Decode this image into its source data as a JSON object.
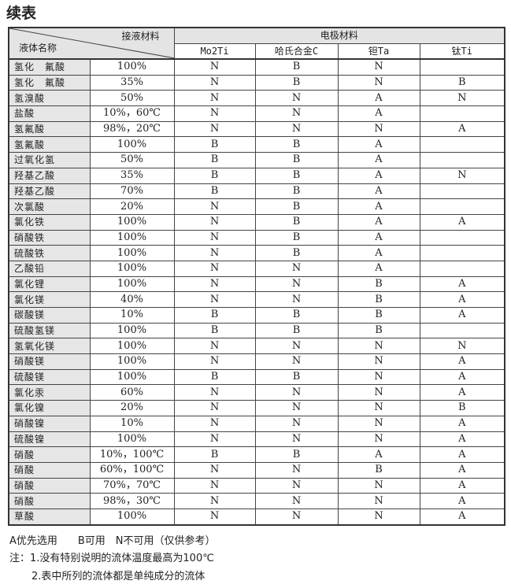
{
  "title": "续表",
  "header": {
    "material": "接液材料",
    "fluid": "液体名称",
    "electrode": "电极材料",
    "columns": [
      "Mo2Ti",
      "哈氏合金C",
      "钽Ta",
      "钛Ti"
    ]
  },
  "rows": [
    [
      "氢化　氟酸",
      "100%",
      "N",
      "B",
      "N",
      ""
    ],
    [
      "氢化　氟酸",
      "35%",
      "N",
      "B",
      "N",
      "B"
    ],
    [
      "氢溴酸",
      "50%",
      "N",
      "N",
      "A",
      "N"
    ],
    [
      "盐酸",
      "10%，60℃",
      "N",
      "N",
      "A",
      ""
    ],
    [
      "氢氟酸",
      "98%，20℃",
      "N",
      "N",
      "N",
      "A"
    ],
    [
      "氢氟酸",
      "100%",
      "B",
      "B",
      "A",
      ""
    ],
    [
      "过氧化氢",
      "50%",
      "B",
      "B",
      "A",
      ""
    ],
    [
      "羟基乙酸",
      "35%",
      "B",
      "B",
      "A",
      "N"
    ],
    [
      "羟基乙酸",
      "70%",
      "B",
      "B",
      "A",
      ""
    ],
    [
      "次氯酸",
      "20%",
      "N",
      "B",
      "A",
      ""
    ],
    [
      "氯化铁",
      "100%",
      "N",
      "B",
      "A",
      "A"
    ],
    [
      "硝酸铁",
      "100%",
      "N",
      "B",
      "A",
      ""
    ],
    [
      "硫酸铁",
      "100%",
      "N",
      "B",
      "A",
      ""
    ],
    [
      "乙酸铅",
      "100%",
      "N",
      "N",
      "A",
      ""
    ],
    [
      "氯化锂",
      "100%",
      "N",
      "N",
      "B",
      "A"
    ],
    [
      "氯化镁",
      "40%",
      "N",
      "N",
      "B",
      "A"
    ],
    [
      "碳酸镁",
      "10%",
      "B",
      "B",
      "B",
      "A"
    ],
    [
      "硫酸氢镁",
      "100%",
      "B",
      "B",
      "B",
      ""
    ],
    [
      "氢氧化镁",
      "100%",
      "N",
      "N",
      "N",
      "N"
    ],
    [
      "硝酸镁",
      "100%",
      "N",
      "N",
      "N",
      "A"
    ],
    [
      "硫酸镁",
      "100%",
      "B",
      "B",
      "N",
      "A"
    ],
    [
      "氯化汞",
      "60%",
      "N",
      "N",
      "N",
      "A"
    ],
    [
      "氯化镍",
      "20%",
      "N",
      "N",
      "N",
      "B"
    ],
    [
      "硝酸镍",
      "10%",
      "N",
      "N",
      "N",
      "A"
    ],
    [
      "硫酸镍",
      "100%",
      "N",
      "N",
      "N",
      "A"
    ],
    [
      "硝酸",
      "10%，100℃",
      "B",
      "B",
      "A",
      "A"
    ],
    [
      "硝酸",
      "60%，100℃",
      "N",
      "N",
      "B",
      "A"
    ],
    [
      "硝酸",
      "70%，70℃",
      "N",
      "N",
      "N",
      "A"
    ],
    [
      "硝酸",
      "98%，30℃",
      "N",
      "N",
      "N",
      "A"
    ],
    [
      "草酸",
      "100%",
      "N",
      "N",
      "N",
      "A"
    ]
  ],
  "footer": {
    "legend": "A优先选用　　B可用　N不可用（仅供参考）",
    "note1": "注：1.没有特别说明的流体温度最高为100℃",
    "note2": "2.表中所列的流体都是单纯成分的流体"
  }
}
